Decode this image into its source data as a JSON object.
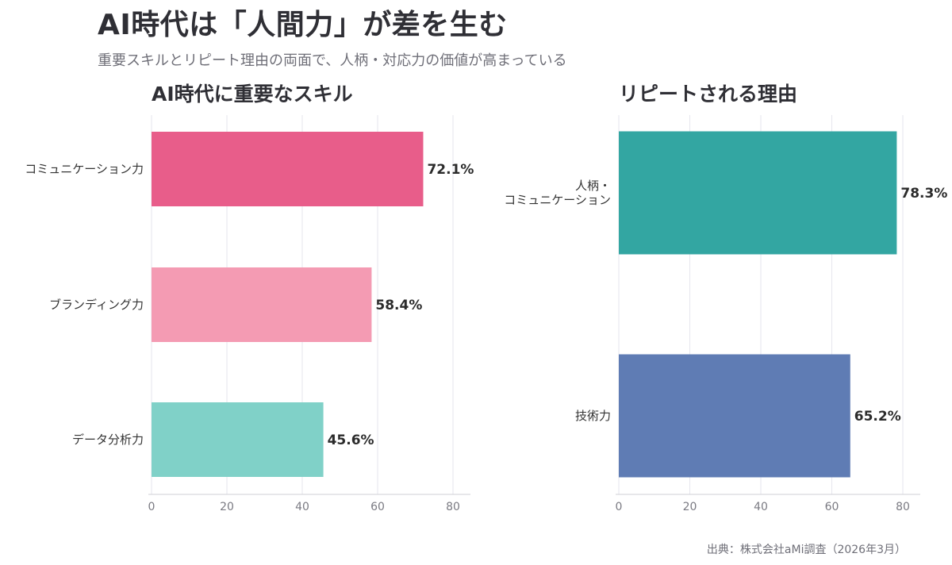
{
  "title": "AI時代は「人間力」が差を生む",
  "subtitle": "重要スキルとリピート理由の両面で、人柄・対応力の価値が高まっている",
  "source": "出典：株式会社aMi調査（2026年3月）",
  "chart_data": [
    {
      "type": "bar",
      "orientation": "horizontal",
      "title": "AI時代に重要なスキル",
      "categories": [
        "コミュニケーション力",
        "ブランディング力",
        "データ分析力"
      ],
      "values": [
        72.1,
        58.4,
        45.6
      ],
      "value_labels": [
        "72.1%",
        "58.4%",
        "45.6%"
      ],
      "colors": [
        "#e85d8a",
        "#f49bb3",
        "#80d1c8"
      ],
      "xlim": [
        0,
        80
      ],
      "xticks": [
        0,
        20,
        40,
        60,
        80
      ],
      "grid": true
    },
    {
      "type": "bar",
      "orientation": "horizontal",
      "title": "リピートされる理由",
      "categories": [
        "人柄・\nコミュニケーション",
        "技術力"
      ],
      "values": [
        78.3,
        65.2
      ],
      "value_labels": [
        "78.3%",
        "65.2%"
      ],
      "colors": [
        "#33a6a2",
        "#5f7cb4"
      ],
      "xlim": [
        0,
        80
      ],
      "xticks": [
        0,
        20,
        40,
        60,
        80
      ],
      "grid": true
    }
  ]
}
